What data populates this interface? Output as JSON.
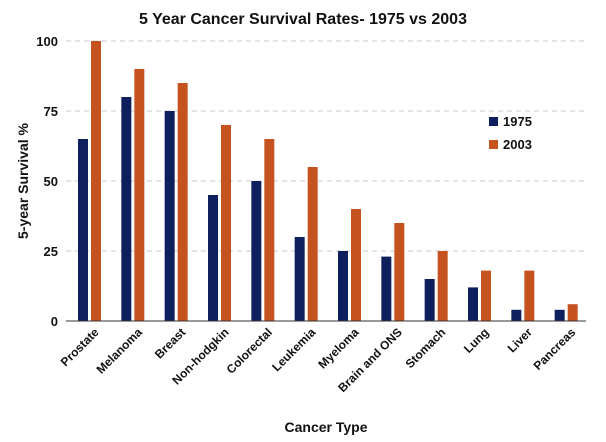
{
  "chart_data": {
    "type": "bar",
    "title": "5 Year Cancer Survival Rates- 1975 vs 2003",
    "xlabel": "Cancer Type",
    "ylabel": "5-year Survival %",
    "ylim": [
      0,
      100
    ],
    "yticks": [
      "0",
      "25",
      "50",
      "75",
      "100"
    ],
    "ytick_values": [
      0,
      25,
      50,
      75,
      100
    ],
    "grid": true,
    "legend_position": "right",
    "categories": [
      "Prostate",
      "Melanoma",
      "Breast",
      "Non-hodgkin",
      "Colorectal",
      "Leukemia",
      "Myeloma",
      "Brain and ONS",
      "Stomach",
      "Lung",
      "Liver",
      "Pancreas"
    ],
    "series": [
      {
        "name": "1975",
        "color": "#0d1f5c",
        "values": [
          65,
          80,
          75,
          45,
          50,
          30,
          25,
          23,
          15,
          12,
          4,
          4
        ]
      },
      {
        "name": "2003",
        "color": "#c5531f",
        "values": [
          100,
          90,
          85,
          70,
          65,
          55,
          40,
          35,
          25,
          18,
          18,
          6
        ]
      }
    ]
  }
}
